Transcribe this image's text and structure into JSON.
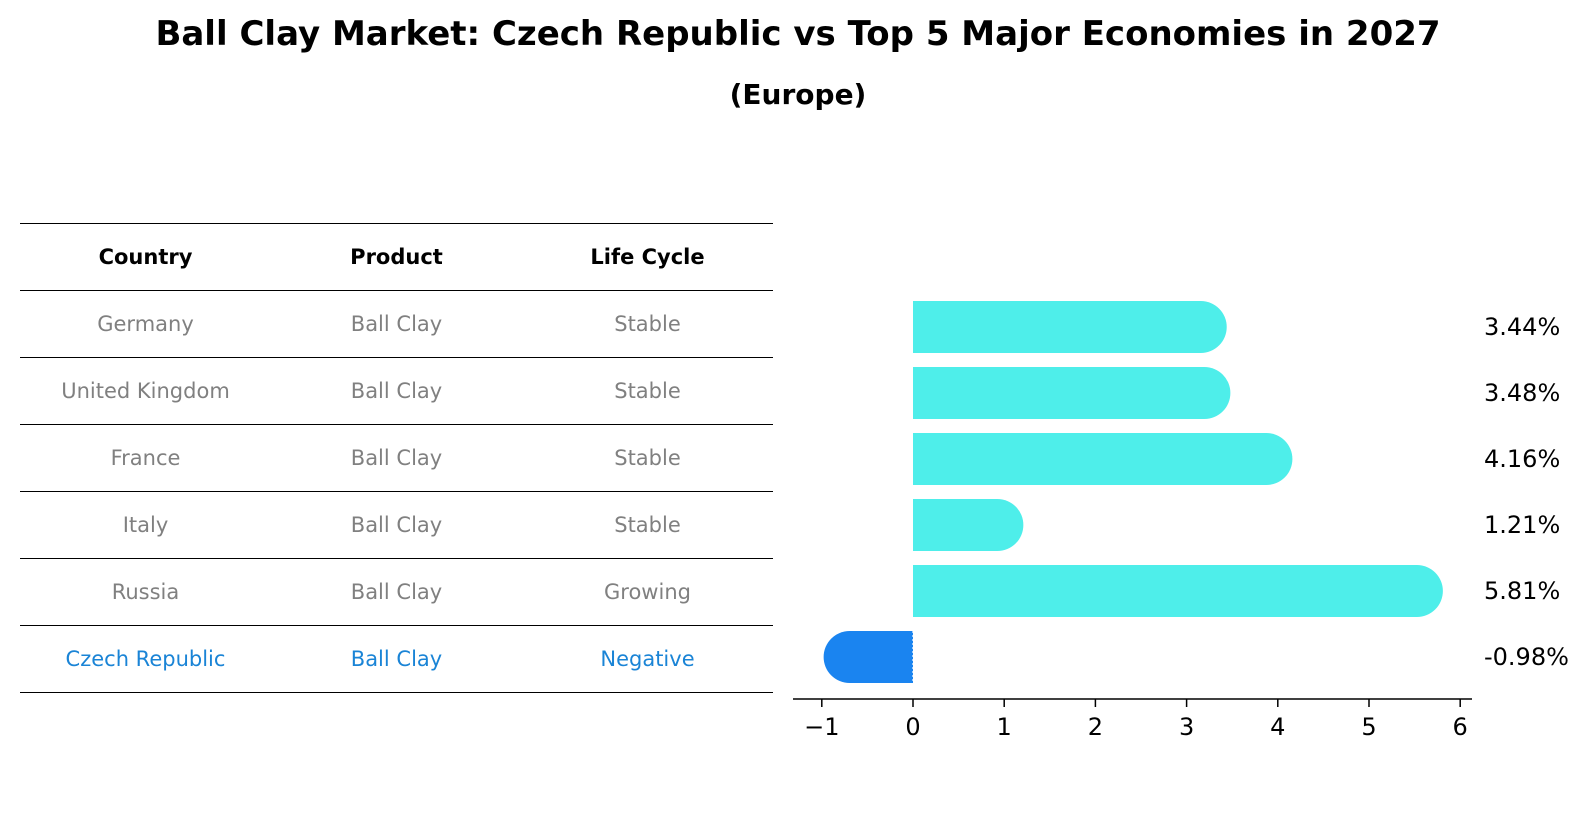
{
  "title": "Ball Clay Market: Czech Republic vs Top 5 Major Economies in 2027",
  "subtitle": "(Europe)",
  "table": {
    "headers": [
      "Country",
      "Product",
      "Life Cycle"
    ],
    "rows": [
      [
        "Germany",
        "Ball Clay",
        "Stable"
      ],
      [
        "United Kingdom",
        "Ball Clay",
        "Stable"
      ],
      [
        "France",
        "Ball Clay",
        "Stable"
      ],
      [
        "Italy",
        "Ball Clay",
        "Stable"
      ],
      [
        "Russia",
        "Ball Clay",
        "Growing"
      ],
      [
        "Czech Republic",
        "Ball Clay",
        "Negative"
      ]
    ]
  },
  "colors": {
    "positive": "#4eeeea",
    "negative": "#1a84f0",
    "highlight_text": "#1a84d6",
    "muted_text": "#808080"
  },
  "chart_data": {
    "type": "bar",
    "orientation": "horizontal",
    "categories": [
      "Germany",
      "United Kingdom",
      "France",
      "Italy",
      "Russia",
      "Czech Republic"
    ],
    "values": [
      3.44,
      3.48,
      4.16,
      1.21,
      5.81,
      -0.98
    ],
    "value_labels": [
      "3.44%",
      "3.48%",
      "4.16%",
      "1.21%",
      "5.81%",
      "-0.98%"
    ],
    "xlim": [
      -1.25,
      6.15
    ],
    "xticks": [
      -1,
      0,
      1,
      2,
      3,
      4,
      5,
      6
    ],
    "xtick_labels": [
      "−1",
      "0",
      "1",
      "2",
      "3",
      "4",
      "5",
      "6"
    ],
    "xlabel": "",
    "ylabel": "",
    "grid": false
  }
}
